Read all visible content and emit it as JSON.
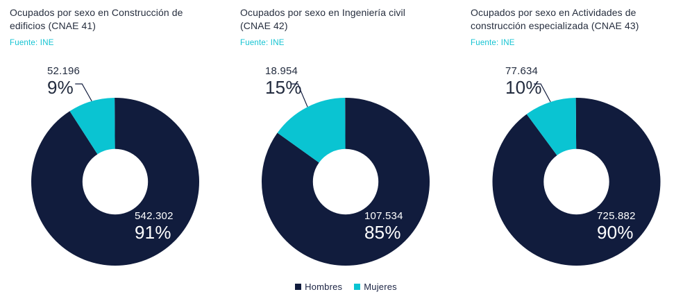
{
  "chart_data": [
    {
      "type": "pie",
      "title": "Ocupados por sexo en Construcción de edificios (CNAE 41)",
      "source": "Fuente: INE",
      "labels": [
        "Hombres",
        "Mujeres"
      ],
      "values": [
        542302,
        52196
      ],
      "display_values": [
        "542.302",
        "52.196"
      ],
      "pct": [
        91,
        9
      ],
      "pct_labels": [
        "91%",
        "9%"
      ],
      "colors": [
        "#111c3d",
        "#0ac4d2"
      ],
      "legend_position": "bottom-center",
      "donut_hole_ratio": 0.39
    },
    {
      "type": "pie",
      "title": "Ocupados por sexo en Ingeniería civil (CNAE 42)",
      "source": "Fuente: INE",
      "labels": [
        "Hombres",
        "Mujeres"
      ],
      "values": [
        107534,
        18954
      ],
      "display_values": [
        "107.534",
        "18.954"
      ],
      "pct": [
        85,
        15
      ],
      "pct_labels": [
        "85%",
        "15%"
      ],
      "colors": [
        "#111c3d",
        "#0ac4d2"
      ],
      "legend_position": "bottom-center",
      "donut_hole_ratio": 0.39
    },
    {
      "type": "pie",
      "title": "Ocupados por sexo en Actividades de construcción especializada (CNAE 43)",
      "source": "Fuente: INE",
      "labels": [
        "Hombres",
        "Mujeres"
      ],
      "values": [
        725882,
        77634
      ],
      "display_values": [
        "725.882",
        "77.634"
      ],
      "pct": [
        90,
        10
      ],
      "pct_labels": [
        "90%",
        "10%"
      ],
      "colors": [
        "#111c3d",
        "#0ac4d2"
      ],
      "legend_position": "bottom-center",
      "donut_hole_ratio": 0.39
    }
  ],
  "legend": {
    "items": [
      {
        "label": "Hombres",
        "color": "#111c3d"
      },
      {
        "label": "Mujeres",
        "color": "#0ac4d2"
      }
    ]
  },
  "palette": {
    "hombres": "#111c3d",
    "mujeres": "#0ac4d2",
    "title_text": "#262e3e",
    "source_text": "#14c3d2",
    "background": "#ffffff"
  }
}
